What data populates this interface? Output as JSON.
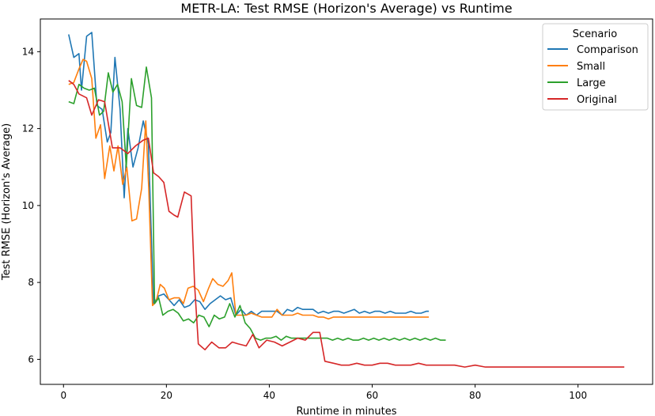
{
  "chart_data": {
    "type": "line",
    "title": "METR-LA: Test RMSE (Horizon's Average) vs Runtime",
    "xlabel": "Runtime in minutes",
    "ylabel": "Test RMSE (Horizon's Average)",
    "xlim": [
      -4.5,
      114.5
    ],
    "ylim": [
      5.35,
      14.85
    ],
    "x_ticks": [
      0,
      20,
      40,
      60,
      80,
      100
    ],
    "y_ticks": [
      6,
      8,
      10,
      12,
      14
    ],
    "grid": false,
    "legend": {
      "title": "Scenario",
      "placement": "top-right"
    },
    "series": [
      {
        "name": "Comparison",
        "color": "#1f77b4",
        "points": [
          [
            1,
            14.45
          ],
          [
            2,
            13.85
          ],
          [
            3,
            13.95
          ],
          [
            3.5,
            13.0
          ],
          [
            4.5,
            14.4
          ],
          [
            5.5,
            14.5
          ],
          [
            6.5,
            12.6
          ],
          [
            7.5,
            12.5
          ],
          [
            8.5,
            11.65
          ],
          [
            9.2,
            11.9
          ],
          [
            10,
            13.85
          ],
          [
            11,
            12.5
          ],
          [
            11.8,
            10.2
          ],
          [
            12.5,
            12.0
          ],
          [
            13.5,
            11.0
          ],
          [
            14.5,
            11.5
          ],
          [
            15.5,
            12.2
          ],
          [
            16.5,
            11.6
          ],
          [
            17.5,
            7.45
          ],
          [
            18.5,
            7.65
          ],
          [
            19.5,
            7.7
          ],
          [
            20.5,
            7.55
          ],
          [
            21.5,
            7.4
          ],
          [
            22.5,
            7.55
          ],
          [
            23.5,
            7.35
          ],
          [
            24.5,
            7.4
          ],
          [
            25.5,
            7.55
          ],
          [
            26.5,
            7.5
          ],
          [
            27.5,
            7.3
          ],
          [
            28.5,
            7.45
          ],
          [
            29.5,
            7.55
          ],
          [
            30.5,
            7.65
          ],
          [
            31.5,
            7.55
          ],
          [
            32.5,
            7.6
          ],
          [
            33.5,
            7.15
          ],
          [
            34.5,
            7.3
          ],
          [
            35.5,
            7.15
          ],
          [
            36.5,
            7.25
          ],
          [
            37.5,
            7.15
          ],
          [
            38.5,
            7.25
          ],
          [
            39.5,
            7.25
          ],
          [
            40.5,
            7.25
          ],
          [
            41.5,
            7.25
          ],
          [
            42.5,
            7.15
          ],
          [
            43.5,
            7.3
          ],
          [
            44.5,
            7.25
          ],
          [
            45.5,
            7.35
          ],
          [
            46.5,
            7.3
          ],
          [
            47.5,
            7.3
          ],
          [
            48.5,
            7.3
          ],
          [
            49.5,
            7.2
          ],
          [
            50.5,
            7.25
          ],
          [
            51.5,
            7.2
          ],
          [
            52.5,
            7.25
          ],
          [
            53.5,
            7.25
          ],
          [
            54.5,
            7.2
          ],
          [
            55.5,
            7.25
          ],
          [
            56.5,
            7.3
          ],
          [
            57.5,
            7.2
          ],
          [
            58.5,
            7.25
          ],
          [
            59.5,
            7.2
          ],
          [
            60.5,
            7.25
          ],
          [
            61.5,
            7.25
          ],
          [
            62.5,
            7.2
          ],
          [
            63.5,
            7.25
          ],
          [
            64.5,
            7.2
          ],
          [
            65.5,
            7.2
          ],
          [
            66.5,
            7.2
          ],
          [
            67.5,
            7.25
          ],
          [
            68.5,
            7.2
          ],
          [
            69.5,
            7.2
          ],
          [
            70.5,
            7.25
          ],
          [
            71,
            7.25
          ]
        ]
      },
      {
        "name": "Small",
        "color": "#ff7f0e",
        "points": [
          [
            1,
            13.15
          ],
          [
            2,
            13.2
          ],
          [
            3,
            13.55
          ],
          [
            3.8,
            13.8
          ],
          [
            4.5,
            13.75
          ],
          [
            5.5,
            13.3
          ],
          [
            6.3,
            11.75
          ],
          [
            7.2,
            12.1
          ],
          [
            8,
            10.7
          ],
          [
            9,
            11.55
          ],
          [
            9.8,
            10.9
          ],
          [
            10.6,
            11.55
          ],
          [
            11.5,
            10.55
          ],
          [
            12.3,
            11.0
          ],
          [
            13.3,
            9.6
          ],
          [
            14.2,
            9.65
          ],
          [
            15.2,
            10.45
          ],
          [
            16,
            12.2
          ],
          [
            16.6,
            10.35
          ],
          [
            17.3,
            7.4
          ],
          [
            18,
            7.5
          ],
          [
            18.8,
            7.95
          ],
          [
            19.6,
            7.85
          ],
          [
            20.5,
            7.55
          ],
          [
            21.5,
            7.6
          ],
          [
            22.5,
            7.6
          ],
          [
            23.3,
            7.45
          ],
          [
            24.2,
            7.85
          ],
          [
            25.2,
            7.9
          ],
          [
            26.2,
            7.8
          ],
          [
            27.2,
            7.5
          ],
          [
            28.2,
            7.85
          ],
          [
            29,
            8.1
          ],
          [
            30,
            7.95
          ],
          [
            31,
            7.9
          ],
          [
            32,
            8.05
          ],
          [
            32.7,
            8.25
          ],
          [
            33.5,
            7.15
          ],
          [
            34.5,
            7.15
          ],
          [
            35.5,
            7.15
          ],
          [
            36.5,
            7.2
          ],
          [
            37.5,
            7.15
          ],
          [
            38.5,
            7.1
          ],
          [
            39.5,
            7.1
          ],
          [
            40.5,
            7.1
          ],
          [
            41.5,
            7.3
          ],
          [
            42.5,
            7.15
          ],
          [
            43.5,
            7.15
          ],
          [
            44.5,
            7.15
          ],
          [
            45.5,
            7.2
          ],
          [
            46.5,
            7.15
          ],
          [
            47.5,
            7.15
          ],
          [
            48.5,
            7.15
          ],
          [
            49.5,
            7.1
          ],
          [
            50.5,
            7.1
          ],
          [
            51.5,
            7.05
          ],
          [
            52.5,
            7.1
          ],
          [
            53.5,
            7.1
          ],
          [
            54.5,
            7.1
          ],
          [
            55.5,
            7.1
          ],
          [
            56.5,
            7.1
          ],
          [
            57.5,
            7.1
          ],
          [
            58.5,
            7.1
          ],
          [
            59.5,
            7.1
          ],
          [
            60.5,
            7.1
          ],
          [
            61.5,
            7.1
          ],
          [
            62.5,
            7.1
          ],
          [
            63.5,
            7.1
          ],
          [
            64.5,
            7.1
          ],
          [
            65.5,
            7.1
          ],
          [
            66.5,
            7.1
          ],
          [
            67.5,
            7.1
          ],
          [
            68.5,
            7.1
          ],
          [
            69.5,
            7.1
          ],
          [
            70.5,
            7.1
          ],
          [
            71,
            7.1
          ]
        ]
      },
      {
        "name": "Large",
        "color": "#2ca02c",
        "points": [
          [
            1,
            12.7
          ],
          [
            2,
            12.65
          ],
          [
            3,
            13.15
          ],
          [
            4,
            13.05
          ],
          [
            5,
            13.0
          ],
          [
            6,
            13.05
          ],
          [
            7,
            12.35
          ],
          [
            7.8,
            12.45
          ],
          [
            8.7,
            13.45
          ],
          [
            9.6,
            12.95
          ],
          [
            10.5,
            13.15
          ],
          [
            11.4,
            12.7
          ],
          [
            12.2,
            11.0
          ],
          [
            13.2,
            13.3
          ],
          [
            14.2,
            12.6
          ],
          [
            15.2,
            12.55
          ],
          [
            16.1,
            13.6
          ],
          [
            17.1,
            12.8
          ],
          [
            17.7,
            7.45
          ],
          [
            18.5,
            7.6
          ],
          [
            19.3,
            7.15
          ],
          [
            20.3,
            7.25
          ],
          [
            21.3,
            7.3
          ],
          [
            22.3,
            7.2
          ],
          [
            23.3,
            7.0
          ],
          [
            24.3,
            7.05
          ],
          [
            25.3,
            6.95
          ],
          [
            26.3,
            7.15
          ],
          [
            27.3,
            7.1
          ],
          [
            28.3,
            6.85
          ],
          [
            29.3,
            7.15
          ],
          [
            30.3,
            7.05
          ],
          [
            31.3,
            7.1
          ],
          [
            32.3,
            7.45
          ],
          [
            33.3,
            7.1
          ],
          [
            34.3,
            7.4
          ],
          [
            35.3,
            6.95
          ],
          [
            36.3,
            6.8
          ],
          [
            37.3,
            6.55
          ],
          [
            38.3,
            6.5
          ],
          [
            39.3,
            6.55
          ],
          [
            40.3,
            6.55
          ],
          [
            41.3,
            6.6
          ],
          [
            42.3,
            6.5
          ],
          [
            43.3,
            6.6
          ],
          [
            44.3,
            6.55
          ],
          [
            45.3,
            6.55
          ],
          [
            46.3,
            6.55
          ],
          [
            47.3,
            6.55
          ],
          [
            48.3,
            6.55
          ],
          [
            49.3,
            6.55
          ],
          [
            50.3,
            6.55
          ],
          [
            51.3,
            6.55
          ],
          [
            52.3,
            6.5
          ],
          [
            53.3,
            6.55
          ],
          [
            54.3,
            6.5
          ],
          [
            55.3,
            6.55
          ],
          [
            56.3,
            6.5
          ],
          [
            57.3,
            6.5
          ],
          [
            58.3,
            6.55
          ],
          [
            59.3,
            6.5
          ],
          [
            60.3,
            6.55
          ],
          [
            61.3,
            6.5
          ],
          [
            62.3,
            6.55
          ],
          [
            63.3,
            6.5
          ],
          [
            64.3,
            6.55
          ],
          [
            65.3,
            6.5
          ],
          [
            66.3,
            6.55
          ],
          [
            67.3,
            6.5
          ],
          [
            68.3,
            6.55
          ],
          [
            69.3,
            6.5
          ],
          [
            70.3,
            6.55
          ],
          [
            71.3,
            6.5
          ],
          [
            72.3,
            6.55
          ],
          [
            73.3,
            6.5
          ],
          [
            74.3,
            6.5
          ]
        ]
      },
      {
        "name": "Original",
        "color": "#d62728",
        "points": [
          [
            1,
            13.25
          ],
          [
            2,
            13.15
          ],
          [
            3,
            12.9
          ],
          [
            4.5,
            12.8
          ],
          [
            5.5,
            12.35
          ],
          [
            6.8,
            12.75
          ],
          [
            8,
            12.7
          ],
          [
            9.5,
            11.5
          ],
          [
            11,
            11.5
          ],
          [
            12.5,
            11.35
          ],
          [
            14,
            11.55
          ],
          [
            15.5,
            11.7
          ],
          [
            16.5,
            11.75
          ],
          [
            17.5,
            10.85
          ],
          [
            18.5,
            10.75
          ],
          [
            19.5,
            10.6
          ],
          [
            20.5,
            9.85
          ],
          [
            21.5,
            9.75
          ],
          [
            22.2,
            9.7
          ],
          [
            23.5,
            10.35
          ],
          [
            24.8,
            10.25
          ],
          [
            25.5,
            7.9
          ],
          [
            26.2,
            6.4
          ],
          [
            27.5,
            6.25
          ],
          [
            28.8,
            6.45
          ],
          [
            30.2,
            6.3
          ],
          [
            31.5,
            6.3
          ],
          [
            32.8,
            6.45
          ],
          [
            34,
            6.4
          ],
          [
            35.5,
            6.35
          ],
          [
            36.8,
            6.65
          ],
          [
            38,
            6.3
          ],
          [
            39.5,
            6.5
          ],
          [
            41,
            6.45
          ],
          [
            42.5,
            6.35
          ],
          [
            44,
            6.45
          ],
          [
            45.5,
            6.55
          ],
          [
            47,
            6.5
          ],
          [
            48.5,
            6.7
          ],
          [
            49.8,
            6.7
          ],
          [
            50.8,
            5.95
          ],
          [
            52.5,
            5.9
          ],
          [
            54,
            5.85
          ],
          [
            55.5,
            5.85
          ],
          [
            57,
            5.9
          ],
          [
            58.5,
            5.85
          ],
          [
            60,
            5.85
          ],
          [
            61.5,
            5.9
          ],
          [
            63,
            5.9
          ],
          [
            64.5,
            5.85
          ],
          [
            66,
            5.85
          ],
          [
            67.5,
            5.85
          ],
          [
            69,
            5.9
          ],
          [
            70.5,
            5.85
          ],
          [
            72,
            5.85
          ],
          [
            74,
            5.85
          ],
          [
            76,
            5.85
          ],
          [
            78,
            5.8
          ],
          [
            80,
            5.85
          ],
          [
            82,
            5.8
          ],
          [
            84,
            5.8
          ],
          [
            86,
            5.8
          ],
          [
            88,
            5.8
          ],
          [
            90,
            5.8
          ],
          [
            92,
            5.8
          ],
          [
            94,
            5.8
          ],
          [
            96,
            5.8
          ],
          [
            98,
            5.8
          ],
          [
            100,
            5.8
          ],
          [
            102,
            5.8
          ],
          [
            104,
            5.8
          ],
          [
            106,
            5.8
          ],
          [
            108,
            5.8
          ],
          [
            109,
            5.8
          ]
        ]
      }
    ]
  }
}
